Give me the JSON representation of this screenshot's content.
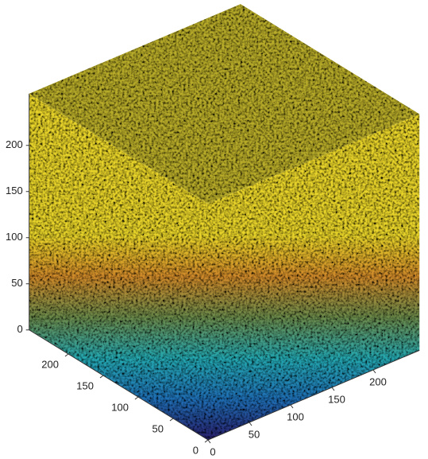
{
  "chart_data": {
    "type": "volume3d",
    "xlim": [
      0,
      256
    ],
    "xticks": [
      0,
      50,
      100,
      150,
      200
    ],
    "ylim": [
      0,
      256
    ],
    "yticks": [
      0,
      50,
      100,
      150,
      200
    ],
    "zlim": [
      0,
      256
    ],
    "zticks": [
      0,
      50,
      100,
      150,
      200
    ],
    "colormap": [
      "#2a1f6e",
      "#1f6fb5",
      "#25a8b0",
      "#6b8a4a",
      "#d08a2a",
      "#e8d42a"
    ]
  }
}
